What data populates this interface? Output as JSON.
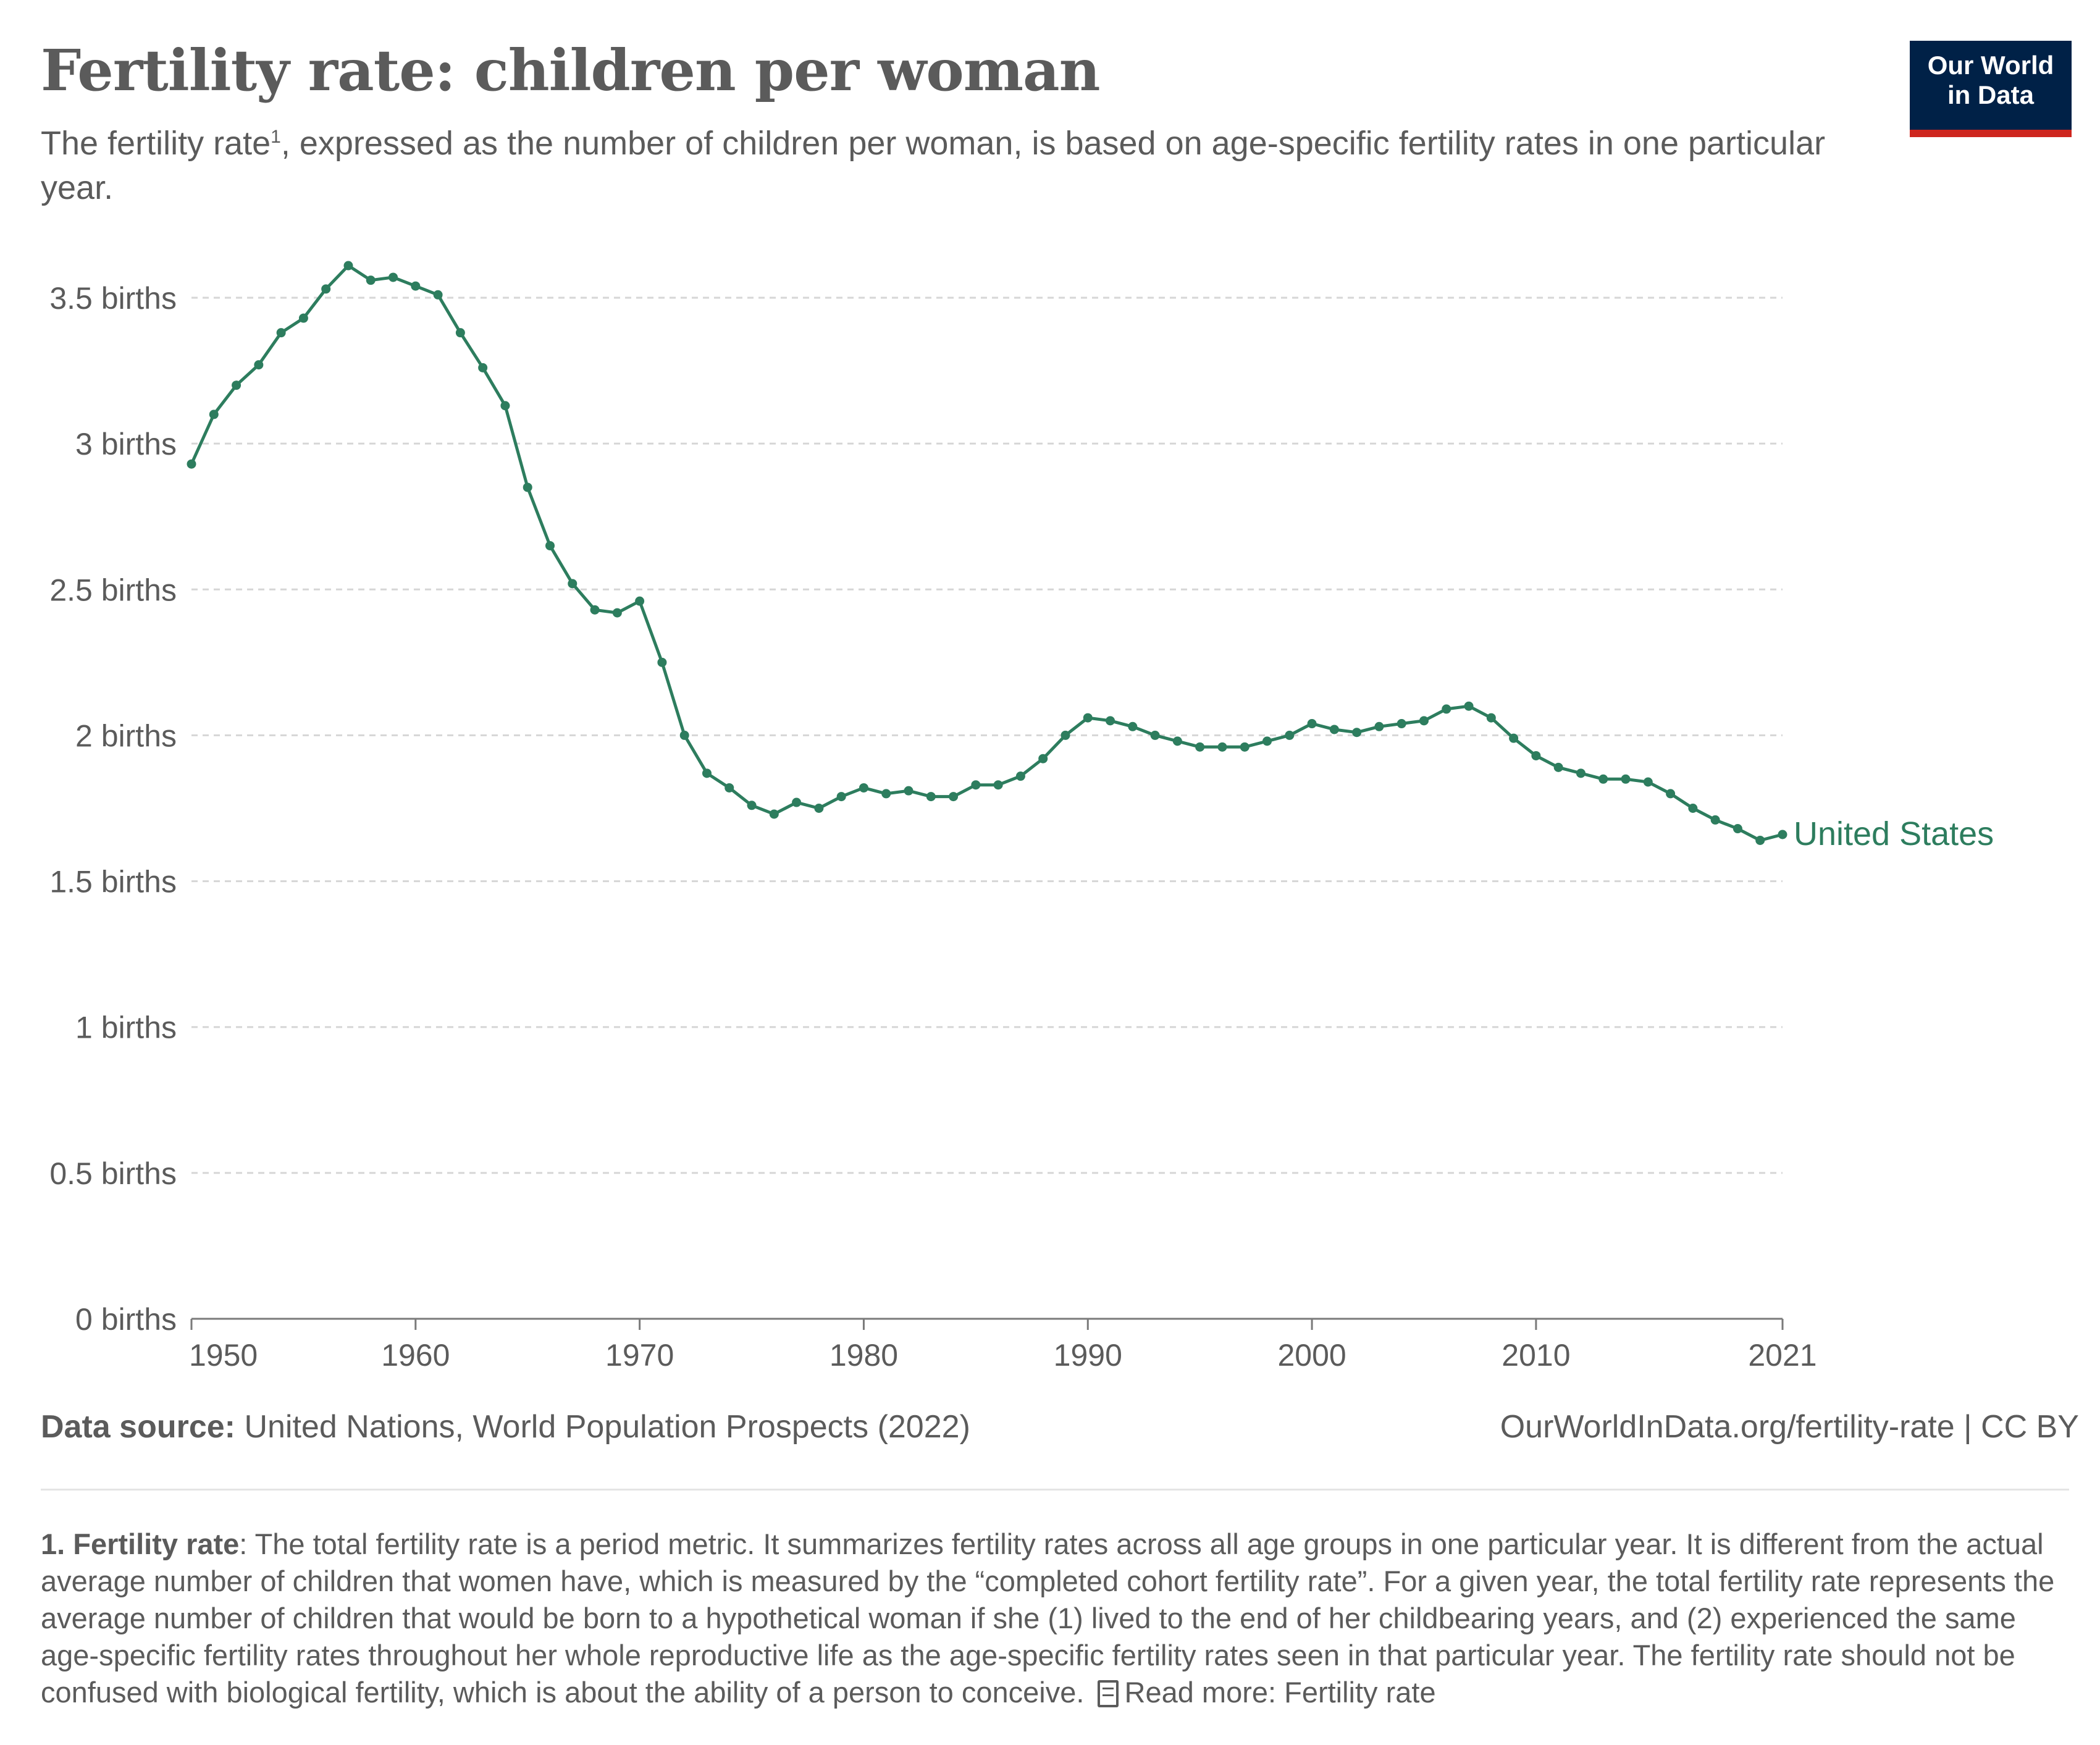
{
  "header": {
    "title": "Fertility rate: children per woman",
    "subtitle_pre": "The fertility rate",
    "subtitle_sup": "1",
    "subtitle_post": ", expressed as the number of children per woman, is based on age-specific fertility rates in one particular year."
  },
  "logo": {
    "line1": "Our World",
    "line2": "in Data",
    "bg_color": "#002147",
    "accent_color": "#ce261e"
  },
  "chart_data": {
    "type": "line",
    "title": "Fertility rate: children per woman",
    "xlabel": "",
    "ylabel": "",
    "xlim": [
      1950,
      2021
    ],
    "ylim": [
      0,
      3.5
    ],
    "y_ticks": [
      {
        "value": 0,
        "label": "0 births"
      },
      {
        "value": 0.5,
        "label": "0.5 births"
      },
      {
        "value": 1,
        "label": "1 births"
      },
      {
        "value": 1.5,
        "label": "1.5 births"
      },
      {
        "value": 2,
        "label": "2 births"
      },
      {
        "value": 2.5,
        "label": "2.5 births"
      },
      {
        "value": 3,
        "label": "3 births"
      },
      {
        "value": 3.5,
        "label": "3.5 births"
      }
    ],
    "x_ticks": [
      {
        "value": 1950,
        "label": "1950"
      },
      {
        "value": 1960,
        "label": "1960"
      },
      {
        "value": 1970,
        "label": "1970"
      },
      {
        "value": 1980,
        "label": "1980"
      },
      {
        "value": 1990,
        "label": "1990"
      },
      {
        "value": 2000,
        "label": "2000"
      },
      {
        "value": 2010,
        "label": "2010"
      },
      {
        "value": 2021,
        "label": "2021"
      }
    ],
    "grid": "horizontal dashed",
    "series": [
      {
        "name": "United States",
        "color": "#2d7d5e",
        "x": [
          1950,
          1951,
          1952,
          1953,
          1954,
          1955,
          1956,
          1957,
          1958,
          1959,
          1960,
          1961,
          1962,
          1963,
          1964,
          1965,
          1966,
          1967,
          1968,
          1969,
          1970,
          1971,
          1972,
          1973,
          1974,
          1975,
          1976,
          1977,
          1978,
          1979,
          1980,
          1981,
          1982,
          1983,
          1984,
          1985,
          1986,
          1987,
          1988,
          1989,
          1990,
          1991,
          1992,
          1993,
          1994,
          1995,
          1996,
          1997,
          1998,
          1999,
          2000,
          2001,
          2002,
          2003,
          2004,
          2005,
          2006,
          2007,
          2008,
          2009,
          2010,
          2011,
          2012,
          2013,
          2014,
          2015,
          2016,
          2017,
          2018,
          2019,
          2020,
          2021
        ],
        "values": [
          2.93,
          3.1,
          3.2,
          3.27,
          3.38,
          3.43,
          3.53,
          3.61,
          3.56,
          3.57,
          3.54,
          3.51,
          3.38,
          3.26,
          3.13,
          2.85,
          2.65,
          2.52,
          2.43,
          2.42,
          2.46,
          2.25,
          2.0,
          1.87,
          1.82,
          1.76,
          1.73,
          1.77,
          1.75,
          1.79,
          1.82,
          1.8,
          1.81,
          1.79,
          1.79,
          1.83,
          1.83,
          1.86,
          1.92,
          2.0,
          2.06,
          2.05,
          2.03,
          2.0,
          1.98,
          1.96,
          1.96,
          1.96,
          1.98,
          2.0,
          2.04,
          2.02,
          2.01,
          2.03,
          2.04,
          2.05,
          2.09,
          2.1,
          2.06,
          1.99,
          1.93,
          1.89,
          1.87,
          1.85,
          1.85,
          1.84,
          1.8,
          1.75,
          1.71,
          1.68,
          1.64,
          1.66
        ]
      }
    ]
  },
  "footer": {
    "source_label": "Data source:",
    "source_text": " United Nations, World Population Prospects (2022)",
    "url_text": "OurWorldInData.org/fertility-rate | CC BY"
  },
  "footnote": {
    "label": "1. Fertility rate",
    "text": ": The total fertility rate is a period metric. It summarizes fertility rates across all age groups in one particular year. It is different from the actual average number of children that women have, which is measured by the “completed cohort fertility rate”. For a given year, the total fertility rate represents the average number of children that would be born to a hypothetical woman if she (1) lived to the end of her childbearing years, and (2) experienced the same age-specific fertility rates throughout her whole reproductive life as the age-specific fertility rates seen in that particular year. The fertility rate should not be confused with biological fertility, which is about the ability of a person to conceive.",
    "icon": "document-icon",
    "read_more": "Read more: Fertility rate"
  }
}
